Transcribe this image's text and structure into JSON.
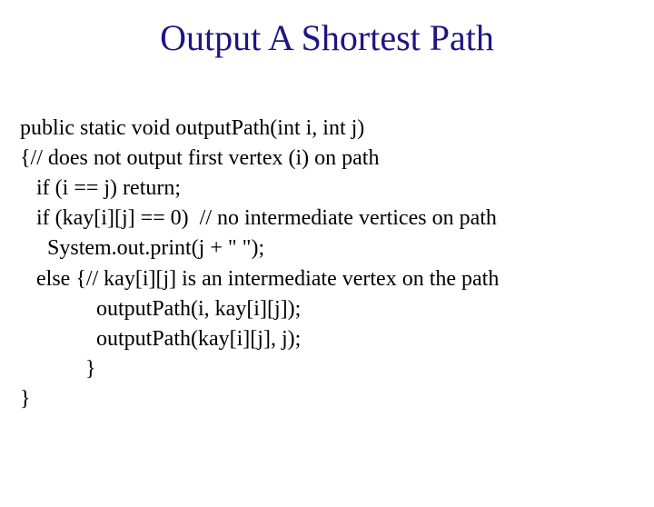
{
  "title": "Output A Shortest Path",
  "title_color": "#1f1682",
  "title_fontsize": 40,
  "background_color": "#ffffff",
  "code": {
    "font_family": "Times New Roman",
    "font_size": 24,
    "text_color": "#000000",
    "lines": [
      "public static void outputPath(int i, int j)",
      "{// does not output first vertex (i) on path",
      "   if (i == j) return;",
      "   if (kay[i][j] == 0)  // no intermediate vertices on path",
      "     System.out.print(j + \" \");",
      "   else {// kay[i][j] is an intermediate vertex on the path",
      "              outputPath(i, kay[i][j]);",
      "              outputPath(kay[i][j], j);",
      "            }",
      "}"
    ]
  }
}
